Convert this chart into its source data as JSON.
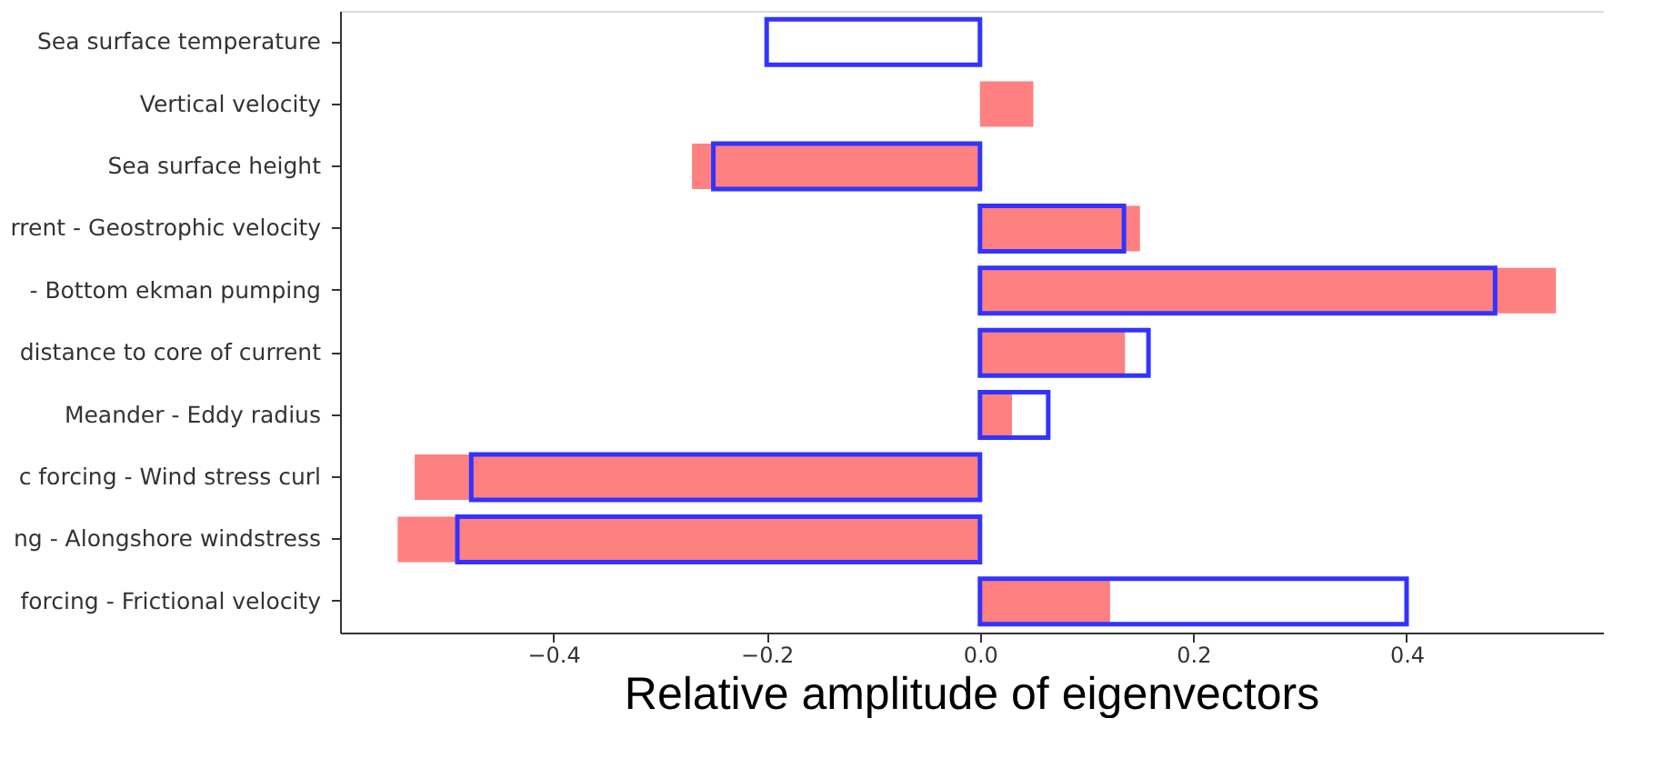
{
  "chart_data": {
    "type": "bar",
    "orientation": "horizontal",
    "xlabel": "Relative amplitude of eigenvectors",
    "categories": [
      "Sea surface temperature",
      "Vertical velocity",
      "Sea surface height",
      "rrent - Geostrophic velocity",
      "- Bottom ekman pumping",
      "distance to core of current",
      "Meander - Eddy radius",
      "c forcing - Wind stress curl",
      "ng - Alongshore windstress",
      "forcing - Frictional velocity"
    ],
    "series": [
      {
        "color": "#ff8080",
        "values": [
          null,
          0.05,
          -0.27,
          0.15,
          0.54,
          0.136,
          0.03,
          -0.53,
          -0.546,
          0.122
        ]
      },
      {
        "color": "#3333ff",
        "values": [
          -0.2,
          null,
          -0.25,
          0.135,
          0.483,
          0.158,
          0.064,
          -0.477,
          -0.49,
          0.4
        ]
      }
    ],
    "xlim": [
      -0.6,
      0.585
    ],
    "xticks": [
      {
        "value": -0.4,
        "label": "−0.4"
      },
      {
        "value": -0.2,
        "label": "−0.2"
      },
      {
        "value": 0.0,
        "label": "0.0"
      },
      {
        "value": 0.2,
        "label": "0.2"
      },
      {
        "value": 0.4,
        "label": "0.4"
      }
    ],
    "grid": false
  }
}
